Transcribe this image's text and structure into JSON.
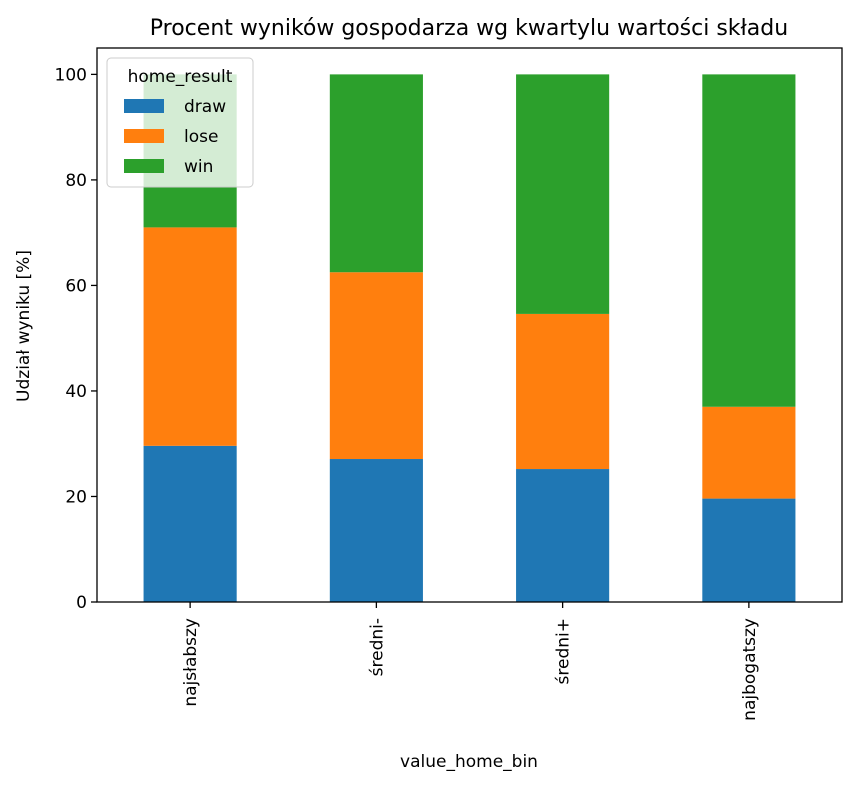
{
  "chart_data": {
    "type": "bar",
    "stacked": true,
    "title": "Procent wyników gospodarza wg kwartylu wartości składu",
    "xlabel": "value_home_bin",
    "ylabel": "Udział wyniku [%]",
    "categories": [
      "najsłabszy",
      "średni-",
      "średni+",
      "najbogatszy"
    ],
    "ylim": [
      0,
      105
    ],
    "yticks": [
      0,
      20,
      40,
      60,
      80,
      100
    ],
    "grid": false,
    "legend": {
      "title": "home_result",
      "placement": "top-left"
    },
    "series": [
      {
        "name": "draw",
        "color": "#1f77b4",
        "values": [
          29.6,
          27.1,
          25.2,
          19.6
        ]
      },
      {
        "name": "lose",
        "color": "#ff7f0e",
        "values": [
          41.4,
          35.4,
          29.4,
          17.4
        ]
      },
      {
        "name": "win",
        "color": "#2ca02c",
        "values": [
          29.0,
          37.5,
          45.4,
          63.0
        ]
      }
    ]
  }
}
